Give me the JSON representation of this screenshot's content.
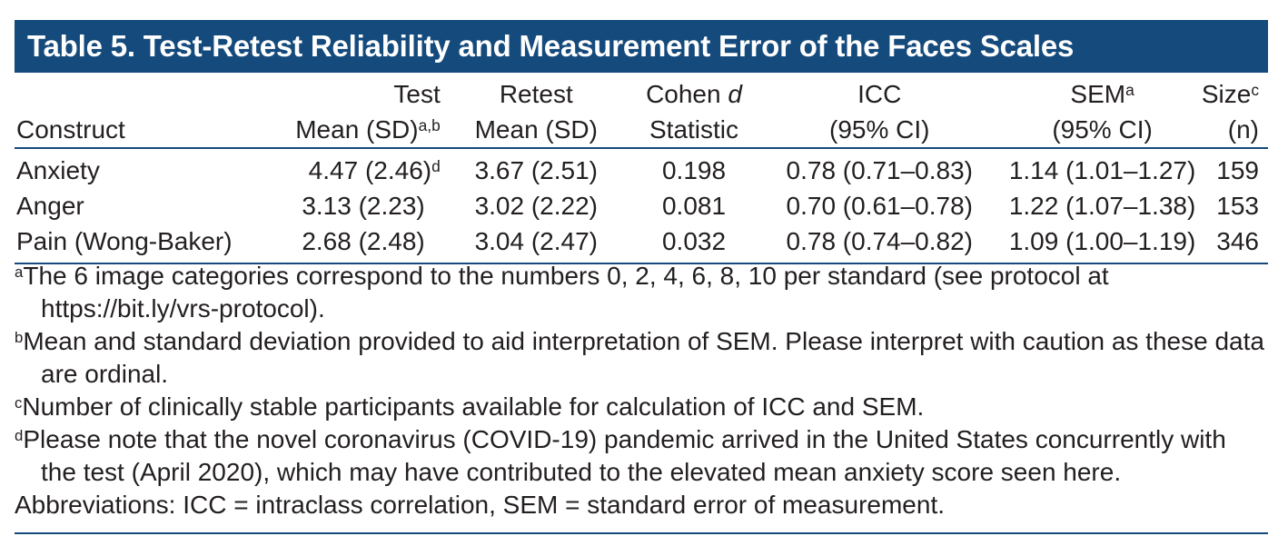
{
  "title": "Table 5. Test-Retest Reliability and Measurement Error of the Faces Scales",
  "header": {
    "construct": "Construct",
    "test_line1": "Test",
    "test_line2": "Mean (SD)",
    "test_sup": "a,b",
    "retest_line1": "Retest",
    "retest_line2": "Mean (SD)",
    "cohen_prefix": "Cohen ",
    "cohen_italic": "d",
    "cohen_line2": "Statistic",
    "icc_line1": "ICC",
    "icc_line2": "(95% CI)",
    "sem_line1": "SEM",
    "sem_sup": "a",
    "sem_line2": "(95% CI)",
    "size_line1": "Size",
    "size_sup": "c",
    "size_line2": "(n)"
  },
  "rows": [
    {
      "construct": "Anxiety",
      "test": "4.47 (2.46)",
      "test_sup": "d",
      "retest": "3.67 (2.51)",
      "d": "0.198",
      "icc": "0.78 (0.71–0.83)",
      "sem": "1.14 (1.01–1.27)",
      "size": "159"
    },
    {
      "construct": "Anger",
      "test": "3.13 (2.23)",
      "test_sup": "",
      "retest": "3.02 (2.22)",
      "d": "0.081",
      "icc": "0.70 (0.61–0.78)",
      "sem": "1.22 (1.07–1.38)",
      "size": "153"
    },
    {
      "construct": "Pain (Wong-Baker)",
      "test": "2.68 (2.48)",
      "test_sup": "",
      "retest": "3.04 (2.47)",
      "d": "0.032",
      "icc": "0.78 (0.74–0.82)",
      "sem": "1.09 (1.00–1.19)",
      "size": "346"
    }
  ],
  "notes": [
    {
      "sup": "a",
      "text": "The 6 image categories correspond to the numbers 0, 2, 4, 6, 8, 10 per standard (see protocol at https://bit.ly/vrs-protocol)."
    },
    {
      "sup": "b",
      "text": "Mean and standard deviation provided to aid interpretation of SEM. Please interpret with caution as these data are ordinal."
    },
    {
      "sup": "c",
      "text": "Number of clinically stable participants available for calculation of ICC and SEM."
    },
    {
      "sup": "d",
      "text": "Please note that the novel coronavirus (COVID-19) pandemic arrived in the United States concurrently with the test (April 2020), which may have contributed to the elevated mean anxiety score seen here."
    }
  ],
  "abbreviations": "Abbreviations: ICC = intraclass correlation, SEM = standard error of measurement."
}
